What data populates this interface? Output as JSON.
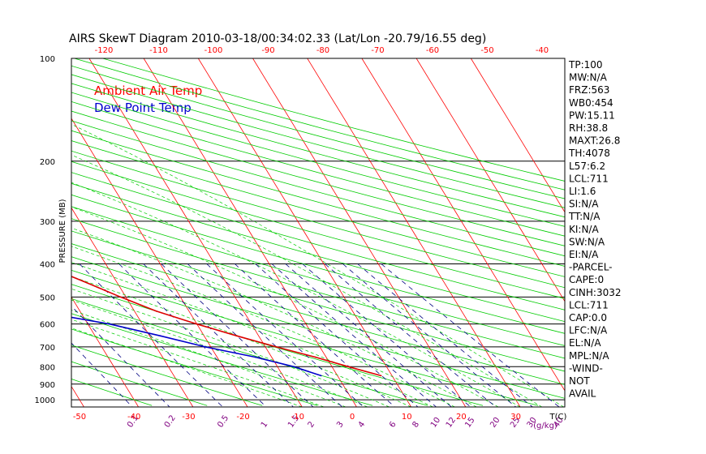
{
  "chart_data": {
    "type": "line",
    "title": "AIRS SkewT Diagram 2010-03-18/00:34:02.33 (Lat/Lon -20.79/16.55 deg)",
    "ylabel": "PRESSURE (MB)",
    "x_unit_label": "T(C)",
    "mixing_unit_label": "(g/kg)",
    "pressure_ticks": [
      100,
      200,
      300,
      400,
      500,
      600,
      700,
      800,
      900,
      1000
    ],
    "bottom_temp_ticks": [
      -50,
      -40,
      -30,
      -20,
      -10,
      0,
      10,
      20,
      30
    ],
    "top_temp_ticks": [
      -120,
      -110,
      -100,
      -90,
      -80,
      -70,
      -60,
      -50,
      -40
    ],
    "mixing_ratio_labels": [
      "0.1",
      "0.2",
      "0.5",
      "1",
      "1.5",
      "2",
      "3",
      "4",
      "6",
      "8",
      "10",
      "12",
      "15",
      "20",
      "25",
      "30",
      "40"
    ],
    "legend": [
      {
        "label": "Ambient Air Temp",
        "color": "#ff0000"
      },
      {
        "label": "Dew Point Temp",
        "color": "#0000cc"
      }
    ],
    "series": [
      {
        "name": "Ambient Air Temp",
        "color": "#dd0000",
        "points": [
          [
            100,
            -80
          ],
          [
            150,
            -80
          ],
          [
            175,
            -77
          ],
          [
            200,
            -74
          ],
          [
            250,
            -66
          ],
          [
            300,
            -57
          ],
          [
            350,
            -49
          ],
          [
            400,
            -42
          ],
          [
            450,
            -36
          ],
          [
            500,
            -31
          ],
          [
            550,
            -26
          ],
          [
            600,
            -20
          ],
          [
            650,
            -14
          ],
          [
            700,
            -8
          ],
          [
            750,
            -2
          ],
          [
            800,
            3
          ],
          [
            850,
            8
          ]
        ]
      },
      {
        "name": "Dew Point Temp",
        "color": "#0000cc",
        "points": [
          [
            100,
            -87
          ],
          [
            150,
            -89
          ],
          [
            200,
            -91
          ],
          [
            250,
            -90
          ],
          [
            300,
            -89
          ],
          [
            350,
            -88
          ],
          [
            400,
            -87
          ],
          [
            450,
            -78
          ],
          [
            500,
            -65
          ],
          [
            550,
            -48
          ],
          [
            600,
            -36
          ],
          [
            650,
            -28
          ],
          [
            700,
            -21
          ],
          [
            750,
            -13
          ],
          [
            800,
            -7
          ],
          [
            850,
            -3
          ]
        ]
      }
    ],
    "stats": [
      "TP:100",
      "MW:N/A",
      "FRZ:563",
      "WB0:454",
      "PW:15.11",
      "RH:38.8",
      "MAXT:26.8",
      "TH:4078",
      "L57:6.2",
      "LCL:711",
      "LI:1.6",
      "SI:N/A",
      "TT:N/A",
      "KI:N/A",
      "SW:N/A",
      "EI:N/A",
      "-PARCEL-",
      "CAPE:0",
      "CINH:3032",
      "LCL:711",
      "CAP:0.0",
      "LFC:N/A",
      "EL:N/A",
      "MPL:N/A",
      "-WIND-",
      "NOT",
      "AVAIL"
    ],
    "colors": {
      "isotherm": "#ff0000",
      "dry_adiabat": "#00cc00",
      "moist_adiabat": "#00cc00",
      "mixing_ratio": "#000080",
      "isobar": "#000000",
      "bottom_tick_label": "#ff0000",
      "mixing_label": "#800080",
      "top_tick_label": "#ff0000"
    }
  }
}
